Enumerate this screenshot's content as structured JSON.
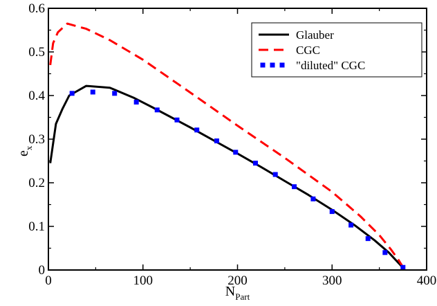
{
  "chart_data": {
    "type": "line",
    "title": "",
    "xlabel": {
      "main": "N",
      "sub": "Part"
    },
    "ylabel": {
      "main": "e",
      "sub": "x"
    },
    "xlim": [
      0,
      400
    ],
    "ylim": [
      0,
      0.6
    ],
    "x_ticks": [
      0,
      100,
      200,
      300,
      400
    ],
    "y_ticks": [
      0,
      0.1,
      0.2,
      0.3,
      0.4,
      0.5,
      0.6
    ],
    "x_tick_labels": [
      "0",
      "100",
      "200",
      "300",
      "400"
    ],
    "y_tick_labels": [
      "0",
      "0.1",
      "0.2",
      "0.3",
      "0.4",
      "0.5",
      "0.6"
    ],
    "grid": false,
    "legend_position": "top-right",
    "series": [
      {
        "name": "Glauber",
        "style": "solid",
        "color": "#000000",
        "points": [
          [
            2,
            0.245
          ],
          [
            8,
            0.335
          ],
          [
            15,
            0.37
          ],
          [
            22,
            0.4
          ],
          [
            40,
            0.422
          ],
          [
            65,
            0.418
          ],
          [
            90,
            0.395
          ],
          [
            110,
            0.373
          ],
          [
            130,
            0.35
          ],
          [
            150,
            0.327
          ],
          [
            175,
            0.297
          ],
          [
            200,
            0.267
          ],
          [
            225,
            0.236
          ],
          [
            250,
            0.204
          ],
          [
            275,
            0.172
          ],
          [
            300,
            0.138
          ],
          [
            325,
            0.101
          ],
          [
            345,
            0.068
          ],
          [
            360,
            0.04
          ],
          [
            372,
            0.012
          ],
          [
            376,
            0.002
          ]
        ]
      },
      {
        "name": "CGC",
        "style": "dashed",
        "color": "#ff0000",
        "points": [
          [
            2,
            0.47
          ],
          [
            5,
            0.52
          ],
          [
            10,
            0.545
          ],
          [
            20,
            0.565
          ],
          [
            40,
            0.553
          ],
          [
            65,
            0.527
          ],
          [
            100,
            0.482
          ],
          [
            150,
            0.407
          ],
          [
            200,
            0.331
          ],
          [
            250,
            0.257
          ],
          [
            300,
            0.179
          ],
          [
            330,
            0.123
          ],
          [
            350,
            0.08
          ],
          [
            362,
            0.048
          ],
          [
            370,
            0.024
          ],
          [
            376,
            0.003
          ]
        ]
      },
      {
        "name": "\"diluted\" CGC",
        "style": "dotted",
        "color": "#0000ff",
        "points": [
          [
            25,
            0.405
          ],
          [
            47,
            0.408
          ],
          [
            70,
            0.405
          ],
          [
            93,
            0.385
          ],
          [
            115,
            0.367
          ],
          [
            136,
            0.344
          ],
          [
            157,
            0.321
          ],
          [
            178,
            0.296
          ],
          [
            198,
            0.27
          ],
          [
            219,
            0.245
          ],
          [
            240,
            0.219
          ],
          [
            260,
            0.191
          ],
          [
            280,
            0.163
          ],
          [
            300,
            0.134
          ],
          [
            320,
            0.103
          ],
          [
            338,
            0.072
          ],
          [
            356,
            0.04
          ],
          [
            375,
            0.006
          ]
        ]
      }
    ]
  }
}
